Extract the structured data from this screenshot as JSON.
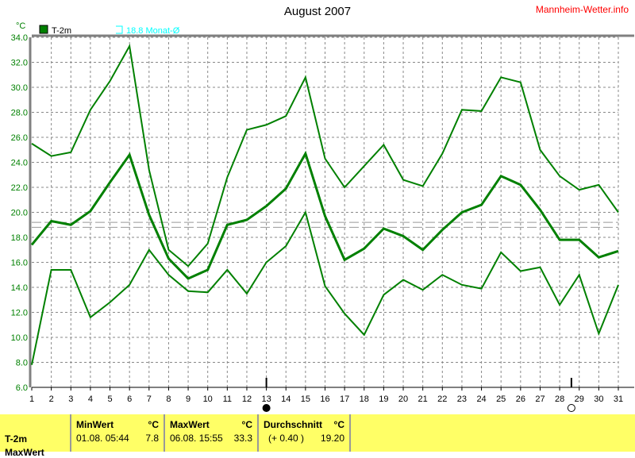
{
  "chart_data": {
    "type": "line",
    "title": "August 2007",
    "ylabel": "°C",
    "ylim": [
      6,
      34
    ],
    "yticks": [
      "6.0",
      "8.0",
      "10.0",
      "12.0",
      "14.0",
      "16.0",
      "18.0",
      "20.0",
      "22.0",
      "24.0",
      "26.0",
      "28.0",
      "30.0",
      "32.0",
      "34.0"
    ],
    "x": [
      1,
      2,
      3,
      4,
      5,
      6,
      7,
      8,
      9,
      10,
      11,
      12,
      13,
      14,
      15,
      16,
      17,
      18,
      19,
      20,
      21,
      22,
      23,
      24,
      25,
      26,
      27,
      28,
      29,
      30,
      31
    ],
    "grid": true,
    "legend": [
      {
        "label": "T-2m",
        "color": "#008000"
      },
      {
        "label": "18.8 Monat-Ø",
        "color": "#00ffff"
      }
    ],
    "series": [
      {
        "role": "max",
        "color": "#008000",
        "values": [
          25.5,
          24.5,
          24.8,
          28.2,
          30.5,
          33.3,
          23.4,
          17.0,
          15.7,
          17.5,
          22.8,
          26.6,
          27.0,
          27.7,
          30.8,
          24.3,
          22.0,
          23.7,
          25.4,
          22.6,
          22.1,
          24.7,
          28.2,
          28.1,
          30.8,
          30.4,
          25.0,
          22.9,
          21.8,
          22.2,
          20.0
        ]
      },
      {
        "role": "mean",
        "color": "#008000",
        "values": [
          17.4,
          19.3,
          19.0,
          20.1,
          22.4,
          24.6,
          19.8,
          16.3,
          14.7,
          15.4,
          19.0,
          19.4,
          20.5,
          21.9,
          24.7,
          19.7,
          16.2,
          17.1,
          18.7,
          18.1,
          17.0,
          18.6,
          20.0,
          20.6,
          22.9,
          22.2,
          20.2,
          17.8,
          17.8,
          16.4,
          16.9
        ]
      },
      {
        "role": "min",
        "color": "#008000",
        "values": [
          7.8,
          15.4,
          15.4,
          11.6,
          12.8,
          14.2,
          17.0,
          15.0,
          13.7,
          13.6,
          15.4,
          13.5,
          16.0,
          17.3,
          20.0,
          14.1,
          11.9,
          10.2,
          13.4,
          14.6,
          13.8,
          15.0,
          14.2,
          13.9,
          16.8,
          15.3,
          15.6,
          12.6,
          15.0,
          10.3,
          14.2
        ]
      }
    ],
    "reference_lines": [
      19.2,
      18.8
    ],
    "moon_phases": [
      {
        "day": 13,
        "phase": "new"
      },
      {
        "day": 28.6,
        "phase": "full"
      }
    ]
  },
  "brand": "Mannheim-Wetter.info",
  "footer": {
    "row_label": "T-2m",
    "row_label2": "MaxWert",
    "min": {
      "header": "MinWert",
      "unit": "°C",
      "date": "01.08.  05:44",
      "value": "7.8"
    },
    "max": {
      "header": "MaxWert",
      "unit": "°C",
      "date": "06.08.  15:55",
      "value": "33.3"
    },
    "avg": {
      "header": "Durchschnitt",
      "unit": "°C",
      "delta": "(+ 0.40 )",
      "value": "19.20"
    }
  }
}
